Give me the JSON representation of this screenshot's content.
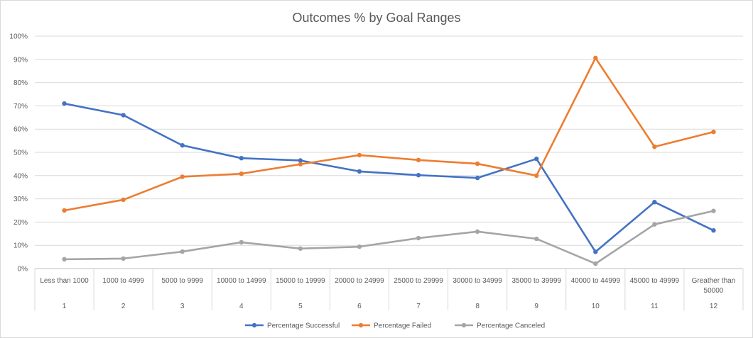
{
  "chart_data": {
    "type": "line",
    "title": "Outcomes % by Goal Ranges",
    "categories": [
      [
        "Less than 1000"
      ],
      [
        "1000 to 4999"
      ],
      [
        "5000 to 9999"
      ],
      [
        "10000 to 14999"
      ],
      [
        "15000 to 19999"
      ],
      [
        "20000 to 24999"
      ],
      [
        "25000 to 29999"
      ],
      [
        "30000 to 34999"
      ],
      [
        "35000 to 39999"
      ],
      [
        "40000 to 44999"
      ],
      [
        "45000 to 49999"
      ],
      [
        "Greather than",
        "50000"
      ]
    ],
    "category_numbers": [
      "1",
      "2",
      "3",
      "4",
      "5",
      "6",
      "7",
      "8",
      "9",
      "10",
      "11",
      "12"
    ],
    "y_ticks": [
      "0%",
      "10%",
      "20%",
      "30%",
      "40%",
      "50%",
      "60%",
      "70%",
      "80%",
      "90%",
      "100%"
    ],
    "ylim": [
      0,
      100
    ],
    "grid": true,
    "legend_position": "bottom",
    "series": [
      {
        "name": "Percentage Successful",
        "color": "#4472c4",
        "values": [
          71,
          66,
          53,
          47.5,
          46.5,
          41.8,
          40.2,
          39,
          47.2,
          7.2,
          28.6,
          16.4
        ]
      },
      {
        "name": "Percentage Failed",
        "color": "#ed7d31",
        "values": [
          25,
          29.6,
          39.5,
          40.8,
          44.9,
          48.8,
          46.7,
          45.1,
          40,
          90.6,
          52.4,
          58.8
        ]
      },
      {
        "name": "Percentage Canceled",
        "color": "#a5a5a5",
        "values": [
          4,
          4.3,
          7.3,
          11.3,
          8.6,
          9.4,
          13.1,
          15.9,
          12.8,
          2.1,
          19,
          24.8
        ]
      }
    ]
  }
}
